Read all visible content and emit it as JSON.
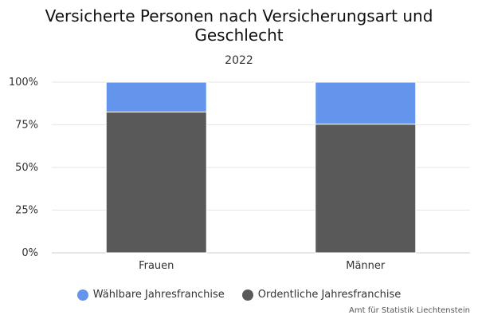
{
  "chart_data": {
    "type": "bar",
    "stacking": "percent",
    "title": "Versicherte Personen nach Versicherungsart und Geschlecht",
    "subtitle": "2022",
    "categories": [
      "Frauen",
      "Männer"
    ],
    "series": [
      {
        "name": "Wählbare Jahresfranchise",
        "values": [
          17.5,
          24.6
        ],
        "color": "#6495ED"
      },
      {
        "name": "Ordentliche Jahresfranchise",
        "values": [
          82.5,
          75.4
        ],
        "color": "#595959"
      }
    ],
    "xlabel": "",
    "ylabel": "",
    "ylim": [
      0,
      100
    ],
    "yticks": [
      "0%",
      "25%",
      "50%",
      "75%",
      "100%"
    ],
    "grid": true,
    "legend": "bottom-center",
    "credits": "Amt für Statistik Liechtenstein"
  }
}
